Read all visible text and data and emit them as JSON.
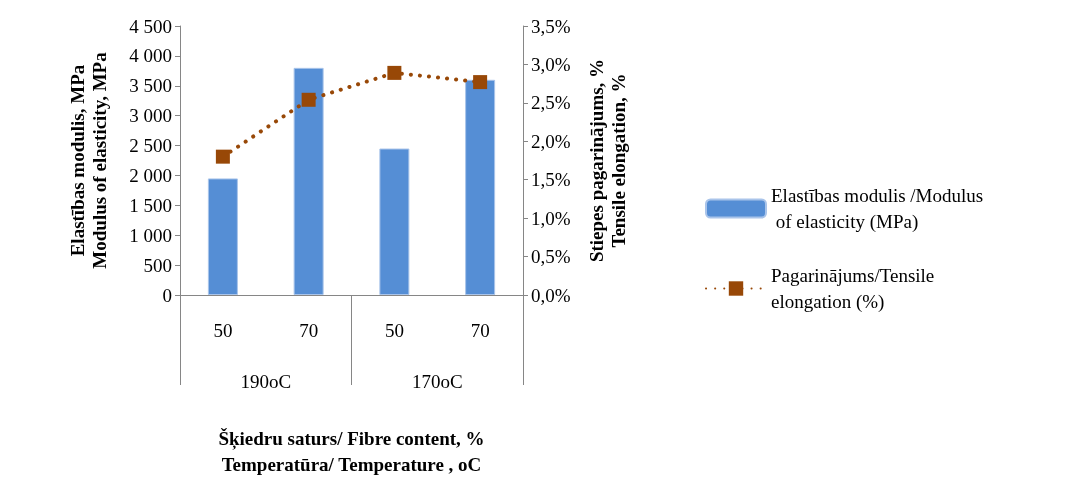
{
  "chart_data": {
    "type": "bar",
    "xlabel": "Šķiedru saturs/ Fibre content, %\nTemperatūra/ Temperature , oC",
    "ylabel": "Elastības modulis, MPa\nModulus of elasticity, MPa",
    "y2label": "Stiepes pagarinājums, %\nTensile elongation, %",
    "categories": [
      "50",
      "70",
      "50",
      "70"
    ],
    "annotations": [
      "190oC",
      "170oC"
    ],
    "series": [
      {
        "name": "Elastības modulis /Modulus of elasticity (MPa)",
        "color": "#558ed5",
        "values": [
          1950,
          3800,
          2450,
          3600
        ]
      },
      {
        "name": "Pagarinājums/Tensile elongation (%)",
        "type": "line",
        "axis": "y2",
        "color": "#984807",
        "marker": "square",
        "line_style": "dotted",
        "values": [
          1.8,
          2.54,
          2.89,
          2.77
        ]
      }
    ],
    "ylim": [
      0,
      4500
    ],
    "yticks": [
      0,
      500,
      {
        "value": 1000,
        "label": "1 000"
      },
      {
        "value": 1500,
        "label": "1 500"
      },
      {
        "value": 2000,
        "label": "2 000"
      },
      {
        "value": 2500,
        "label": "2 500"
      },
      {
        "value": 3000,
        "label": "3 000"
      },
      {
        "value": 3500,
        "label": "3 500"
      },
      {
        "value": 4000,
        "label": "4 000"
      },
      {
        "value": 4500,
        "label": "4 500"
      }
    ],
    "y2lim": [
      0,
      3.5
    ],
    "y2ticks": [
      {
        "value": 0,
        "label": "0,0%"
      },
      {
        "value": 0.5,
        "label": "0,5%"
      },
      {
        "value": 1,
        "label": "1,0%"
      },
      {
        "value": 1.5,
        "label": "1,5%"
      },
      {
        "value": 2,
        "label": "2,0%"
      },
      {
        "value": 2.5,
        "label": "2,5%"
      },
      {
        "value": 3,
        "label": "3,0%"
      },
      {
        "value": 3.5,
        "label": "3,5%"
      }
    ],
    "grid": false,
    "legend": "right"
  }
}
